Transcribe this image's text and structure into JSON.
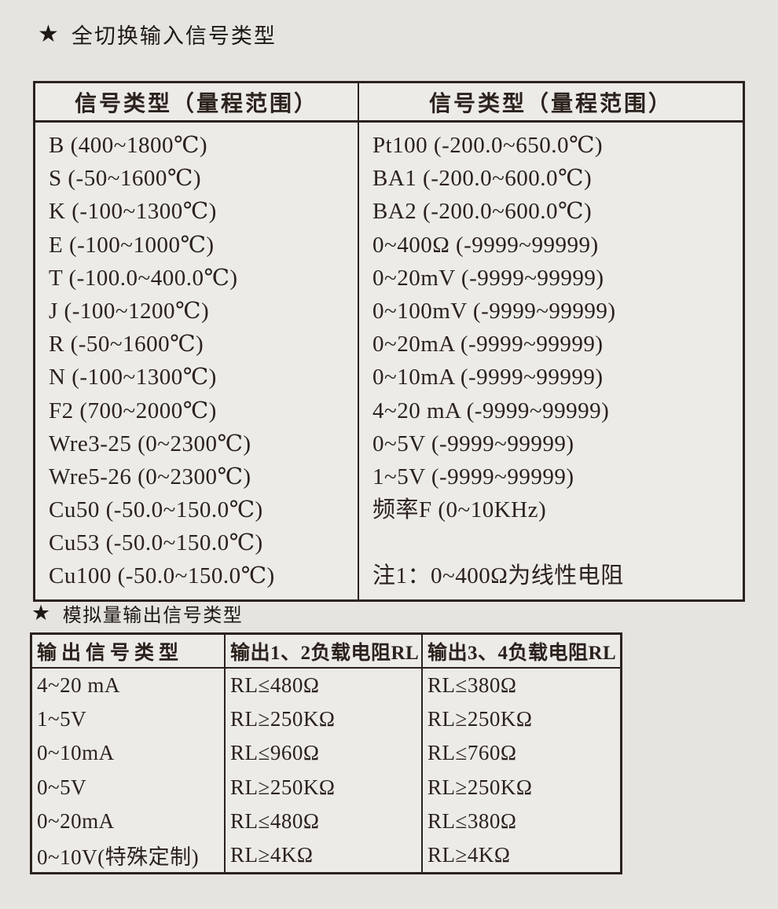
{
  "section1": {
    "star": "★",
    "title": "全切换输入信号类型",
    "table": {
      "headers": [
        "信号类型（量程范围）",
        "信号类型（量程范围）"
      ],
      "left_rows": [
        "B (400~1800℃)",
        "S (-50~1600℃)",
        "K (-100~1300℃)",
        "E (-100~1000℃)",
        "T (-100.0~400.0℃)",
        "J (-100~1200℃)",
        "R (-50~1600℃)",
        "N (-100~1300℃)",
        "F2 (700~2000℃)",
        "Wre3-25 (0~2300℃)",
        "Wre5-26 (0~2300℃)",
        "Cu50 (-50.0~150.0℃)",
        "Cu53 (-50.0~150.0℃)",
        "Cu100 (-50.0~150.0℃)"
      ],
      "right_rows": [
        "Pt100 (-200.0~650.0℃)",
        "BA1 (-200.0~600.0℃)",
        "BA2 (-200.0~600.0℃)",
        "0~400Ω (-9999~99999)",
        "0~20mV (-9999~99999)",
        "0~100mV (-9999~99999)",
        "0~20mA (-9999~99999)",
        "0~10mA (-9999~99999)",
        "4~20 mA (-9999~99999)",
        "0~5V (-9999~99999)",
        "1~5V (-9999~99999)",
        "频率F (0~10KHz)"
      ],
      "note": "注1：0~400Ω为线性电阻"
    }
  },
  "section2": {
    "star": "★",
    "title": "模拟量输出信号类型",
    "table": {
      "headers": [
        "输出信号类型",
        "输出1、2负载电阻RL",
        "输出3、4负载电阻RL"
      ],
      "rows": [
        [
          "4~20 mA",
          "RL≤480Ω",
          "RL≤380Ω"
        ],
        [
          "1~5V",
          "RL≥250KΩ",
          "RL≥250KΩ"
        ],
        [
          "0~10mA",
          "RL≤960Ω",
          "RL≤760Ω"
        ],
        [
          "0~5V",
          "RL≥250KΩ",
          "RL≥250KΩ"
        ],
        [
          "0~20mA",
          "RL≤480Ω",
          "RL≤380Ω"
        ],
        [
          "0~10V(特殊定制)",
          "RL≥4KΩ",
          "RL≥4KΩ"
        ]
      ]
    }
  },
  "colors": {
    "page_background": "#e6e4e1",
    "table_background": "#ecebe8",
    "border": "#2b221e",
    "text": "#2b211d"
  }
}
